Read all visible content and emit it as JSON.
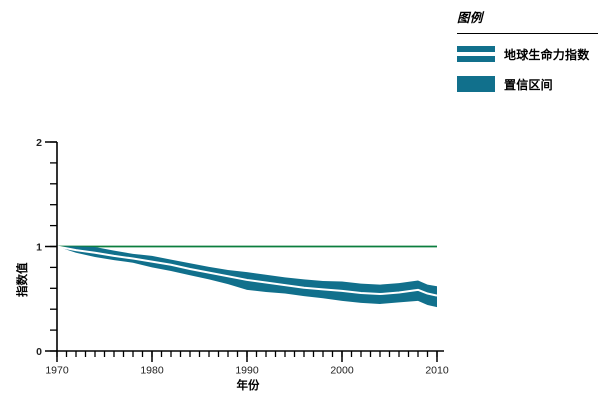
{
  "chart_data": {
    "type": "area",
    "title": "",
    "xlabel": "年份",
    "ylabel": "指数值",
    "xlim": [
      1970,
      2010
    ],
    "ylim": [
      0,
      2
    ],
    "xticks_major": [
      1970,
      1980,
      1990,
      2000,
      2010
    ],
    "xtick_minor_step": 1,
    "yticks_major": [
      0,
      1,
      2
    ],
    "ytick_minor_step": 0.2,
    "grid": false,
    "reference_line_y": 1,
    "x": [
      1970,
      1972,
      1974,
      1976,
      1978,
      1980,
      1982,
      1984,
      1986,
      1988,
      1990,
      1992,
      1994,
      1996,
      1998,
      2000,
      2002,
      2004,
      2006,
      2008,
      2009,
      2010
    ],
    "series": [
      {
        "name": "地球生命力指数",
        "type": "line",
        "values": [
          1.0,
          0.965,
          0.94,
          0.91,
          0.885,
          0.855,
          0.825,
          0.785,
          0.75,
          0.715,
          0.68,
          0.655,
          0.63,
          0.605,
          0.59,
          0.575,
          0.555,
          0.545,
          0.56,
          0.585,
          0.55,
          0.53
        ]
      },
      {
        "name": "置信区间",
        "type": "band",
        "upper": [
          1.0,
          1.0,
          0.995,
          0.96,
          0.93,
          0.91,
          0.875,
          0.84,
          0.805,
          0.775,
          0.755,
          0.73,
          0.705,
          0.685,
          0.67,
          0.665,
          0.645,
          0.635,
          0.65,
          0.675,
          0.635,
          0.62
        ],
        "lower": [
          1.0,
          0.94,
          0.9,
          0.87,
          0.845,
          0.8,
          0.765,
          0.725,
          0.685,
          0.64,
          0.585,
          0.565,
          0.55,
          0.525,
          0.505,
          0.48,
          0.46,
          0.45,
          0.465,
          0.48,
          0.44,
          0.42
        ]
      }
    ],
    "colors": {
      "band": "#11708C",
      "index_line": "#ffffff",
      "reference_line": "#0B7E3E",
      "axis": "#000000",
      "tick_label": "#222222"
    },
    "legend": {
      "title": "图例",
      "position": "top-right",
      "items": [
        {
          "label": "地球生命力指数",
          "swatch": "band-with-line"
        },
        {
          "label": "置信区间",
          "swatch": "solid"
        }
      ]
    }
  }
}
